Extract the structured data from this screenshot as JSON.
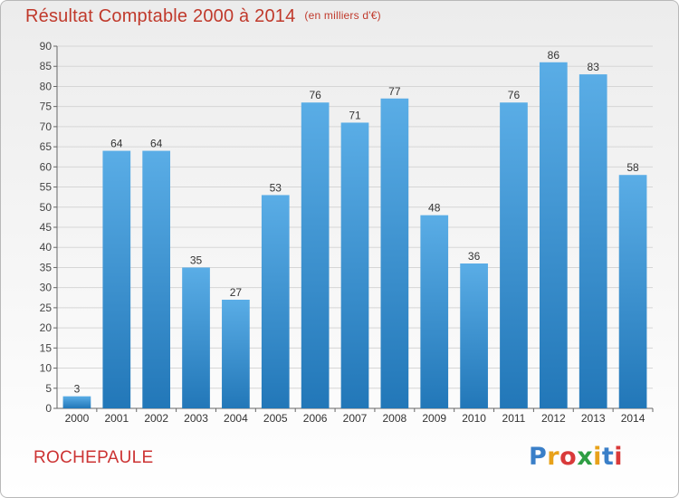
{
  "title": "Résultat Comptable 2000 à 2014",
  "title_unit": "(en milliers d'€)",
  "place": "ROCHEPAULE",
  "logo": {
    "letters": [
      "P",
      "r",
      "o",
      "x",
      "i",
      "t",
      "i"
    ],
    "colors": [
      "#3a7fc8",
      "#e8a21a",
      "#d93a3a",
      "#2f9e44",
      "#e8a21a",
      "#3a7fc8",
      "#d93a3a"
    ]
  },
  "colors": {
    "bar_top": "#5aade6",
    "bar_bottom": "#2277b8",
    "title": "#c0392b",
    "grid": "#d6d6d6"
  },
  "chart_data": {
    "type": "bar",
    "categories": [
      "2000",
      "2001",
      "2002",
      "2003",
      "2004",
      "2005",
      "2006",
      "2007",
      "2008",
      "2009",
      "2010",
      "2011",
      "2012",
      "2013",
      "2014"
    ],
    "values": [
      3,
      64,
      64,
      35,
      27,
      53,
      76,
      71,
      77,
      48,
      36,
      76,
      86,
      83,
      58
    ],
    "ylim": [
      0,
      90
    ],
    "yticks": [
      "0",
      "5",
      "10",
      "15",
      "20",
      "25",
      "30",
      "35",
      "40",
      "45",
      "50",
      "55",
      "60",
      "65",
      "70",
      "75",
      "80",
      "85",
      "90"
    ],
    "grid": true,
    "data_labels": true
  }
}
